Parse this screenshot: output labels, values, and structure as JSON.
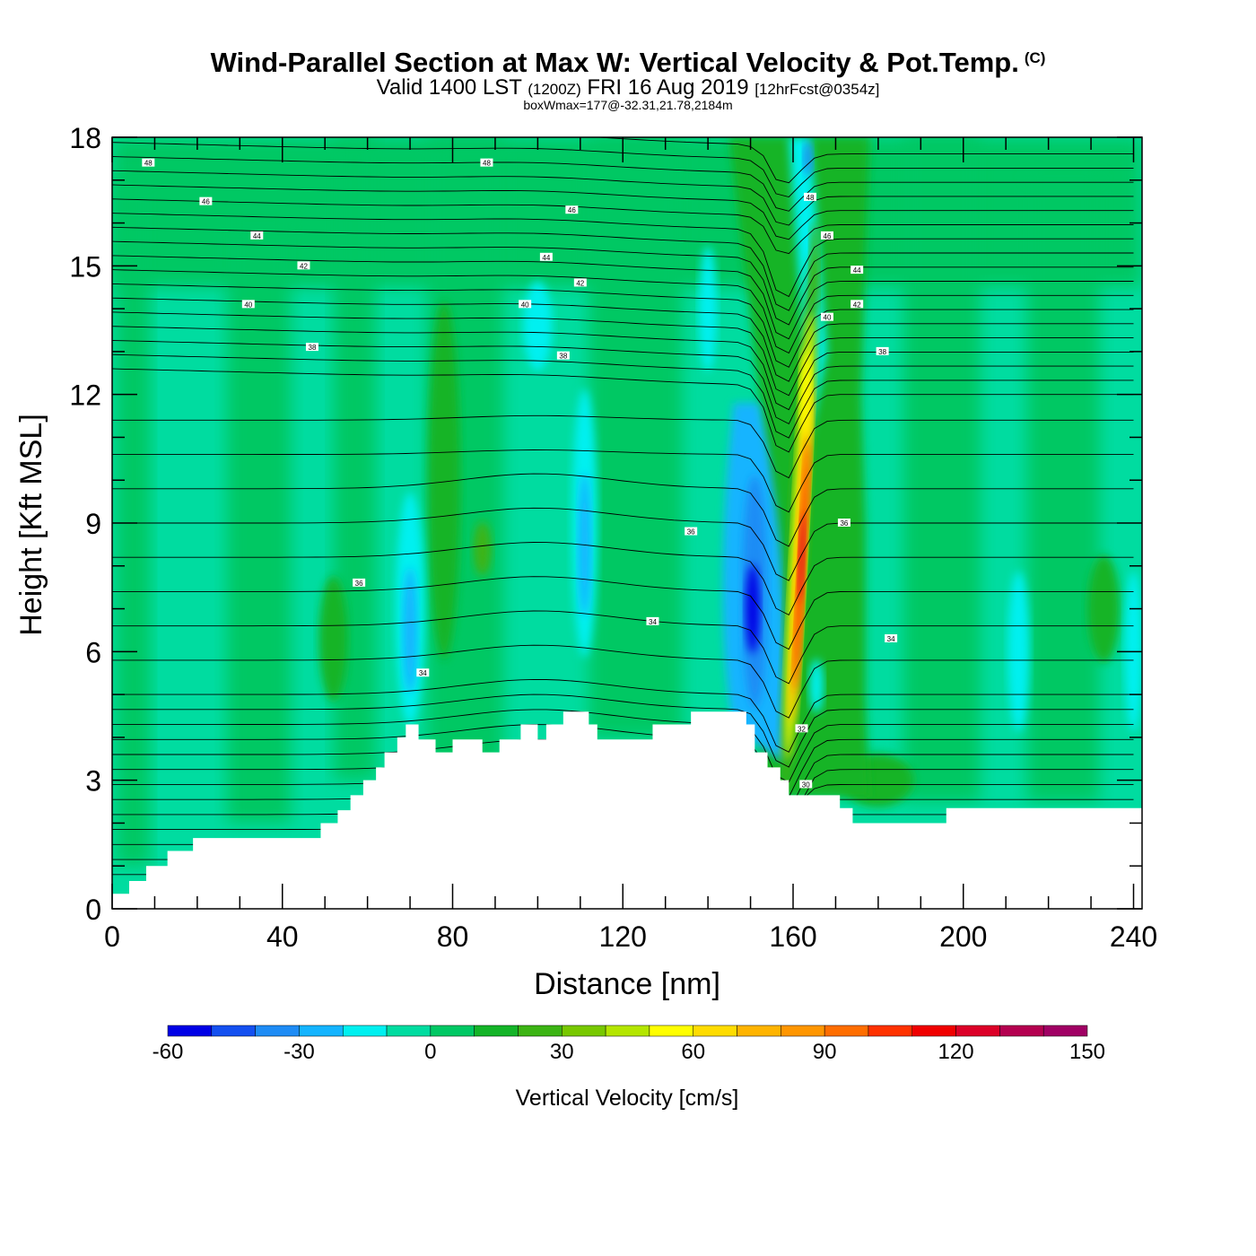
{
  "header": {
    "title": "Wind-Parallel Section at Max W: Vertical Velocity & Pot.Temp.",
    "copyright": "(C)",
    "valid_prefix": "Valid 1400 LST",
    "valid_utc": "(1200Z)",
    "valid_date": "FRI 16 Aug 2019",
    "forecast": "[12hrFcst@0354z]",
    "box_wmax": "boxWmax=177@-32.31,21.78,2184m"
  },
  "chart_data": {
    "type": "heatmap",
    "title": "Wind-Parallel Section at Max W: Vertical Velocity & Pot.Temp.",
    "xlabel": "Distance [nm]",
    "ylabel": "Height [Kft MSL]",
    "xlim": [
      0,
      242
    ],
    "ylim": [
      0,
      18
    ],
    "x_ticks": [
      0,
      40,
      80,
      120,
      160,
      200,
      240
    ],
    "y_ticks": [
      0,
      3,
      6,
      9,
      12,
      15,
      18
    ],
    "colorbar": {
      "title": "Vertical Velocity [cm/s]",
      "levels": [
        -60,
        -50,
        -40,
        -30,
        -20,
        -10,
        0,
        10,
        20,
        30,
        40,
        50,
        60,
        70,
        80,
        90,
        100,
        110,
        120,
        130,
        140,
        150
      ],
      "tick_labels": [
        "-60",
        "-30",
        "0",
        "30",
        "60",
        "90",
        "120",
        "150"
      ],
      "tick_values": [
        -60,
        -30,
        0,
        30,
        60,
        90,
        120,
        150
      ],
      "colors": [
        "#0000e6",
        "#1450f0",
        "#1e8cf5",
        "#14b4ff",
        "#00f0f0",
        "#00dca0",
        "#00c864",
        "#14b428",
        "#3cb414",
        "#78c800",
        "#b4e600",
        "#ffff00",
        "#ffdc00",
        "#ffb400",
        "#ff9600",
        "#ff6e00",
        "#ff3200",
        "#f00000",
        "#dc0028",
        "#b40050",
        "#a00064"
      ]
    },
    "terrain_kft": [
      [
        0,
        0.35
      ],
      [
        4,
        0.65
      ],
      [
        8,
        1.0
      ],
      [
        13,
        1.35
      ],
      [
        19,
        1.65
      ],
      [
        47,
        1.65
      ],
      [
        49,
        2.0
      ],
      [
        53,
        2.3
      ],
      [
        56,
        2.65
      ],
      [
        59,
        3.0
      ],
      [
        62,
        3.3
      ],
      [
        64,
        3.65
      ],
      [
        67,
        4.0
      ],
      [
        69,
        4.3
      ],
      [
        72,
        3.95
      ],
      [
        76,
        3.65
      ],
      [
        80,
        3.95
      ],
      [
        87,
        3.65
      ],
      [
        91,
        3.95
      ],
      [
        96,
        4.3
      ],
      [
        100,
        3.95
      ],
      [
        102,
        4.3
      ],
      [
        106,
        4.6
      ],
      [
        112,
        4.3
      ],
      [
        114,
        3.95
      ],
      [
        127,
        4.3
      ],
      [
        136,
        4.6
      ],
      [
        149,
        4.3
      ],
      [
        151,
        3.65
      ],
      [
        154,
        3.3
      ],
      [
        157,
        3.0
      ],
      [
        159,
        2.65
      ],
      [
        171,
        2.35
      ],
      [
        174,
        2.0
      ],
      [
        196,
        2.35
      ],
      [
        242,
        2.35
      ]
    ],
    "theta_labels": [
      {
        "x": 8.5,
        "y": 17.4,
        "label": "48"
      },
      {
        "x": 22,
        "y": 16.5,
        "label": "46"
      },
      {
        "x": 34,
        "y": 15.7,
        "label": "44"
      },
      {
        "x": 45,
        "y": 15.0,
        "label": "42"
      },
      {
        "x": 32,
        "y": 14.1,
        "label": "40"
      },
      {
        "x": 47,
        "y": 13.1,
        "label": "38"
      },
      {
        "x": 88,
        "y": 17.4,
        "label": "48"
      },
      {
        "x": 108,
        "y": 16.3,
        "label": "46"
      },
      {
        "x": 102,
        "y": 15.2,
        "label": "44"
      },
      {
        "x": 110,
        "y": 14.6,
        "label": "42"
      },
      {
        "x": 97,
        "y": 14.1,
        "label": "40"
      },
      {
        "x": 106,
        "y": 12.9,
        "label": "38"
      },
      {
        "x": 58,
        "y": 7.6,
        "label": "36"
      },
      {
        "x": 73,
        "y": 5.5,
        "label": "34"
      },
      {
        "x": 136,
        "y": 8.8,
        "label": "36"
      },
      {
        "x": 127,
        "y": 6.7,
        "label": "34"
      },
      {
        "x": 164,
        "y": 16.6,
        "label": "48"
      },
      {
        "x": 168,
        "y": 15.7,
        "label": "46"
      },
      {
        "x": 175,
        "y": 14.9,
        "label": "44"
      },
      {
        "x": 175,
        "y": 14.1,
        "label": "42"
      },
      {
        "x": 168,
        "y": 13.8,
        "label": "40"
      },
      {
        "x": 181,
        "y": 13.0,
        "label": "38"
      },
      {
        "x": 172,
        "y": 9.0,
        "label": "36"
      },
      {
        "x": 183,
        "y": 6.3,
        "label": "34"
      },
      {
        "x": 162,
        "y": 4.2,
        "label": "32"
      },
      {
        "x": 163,
        "y": 2.9,
        "label": "30"
      }
    ]
  }
}
